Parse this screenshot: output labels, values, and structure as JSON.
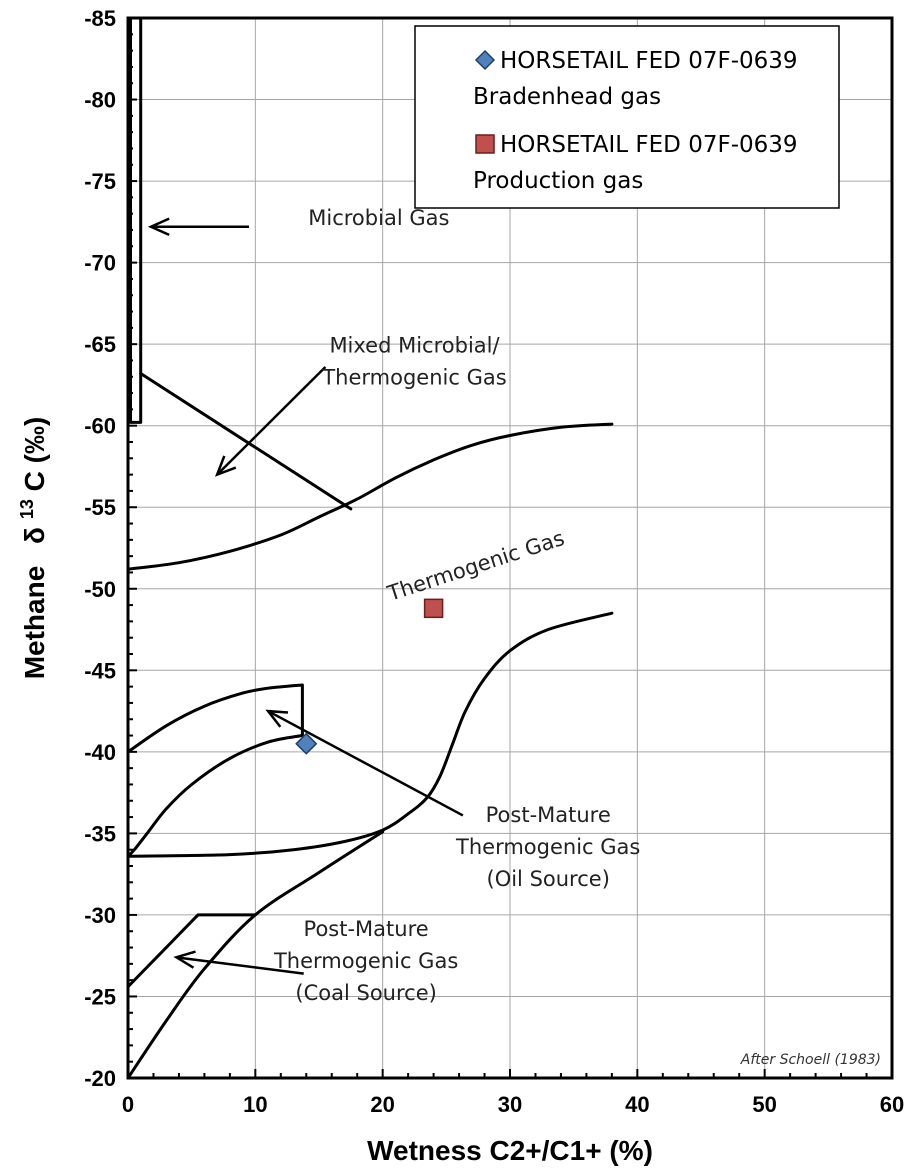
{
  "chart_data": {
    "type": "scatter",
    "title": "",
    "xlabel": "Wetness C2+/C1+ (%)",
    "ylabel_prefix": "Methane",
    "ylabel_delta": "δ",
    "ylabel_sup": "13",
    "ylabel_suffix": "C (‰)",
    "xlim": [
      0,
      60
    ],
    "ylim": [
      -85,
      -20
    ],
    "x_ticks": [
      0,
      10,
      20,
      30,
      40,
      50,
      60
    ],
    "y_ticks": [
      -85,
      -80,
      -75,
      -70,
      -65,
      -60,
      -55,
      -50,
      -45,
      -40,
      -35,
      -30,
      -25,
      -20
    ],
    "x_tick_labels": [
      "0",
      "10",
      "20",
      "30",
      "40",
      "50",
      "60"
    ],
    "y_tick_labels": [
      "-85",
      "-80",
      "-75",
      "-70",
      "-65",
      "-60",
      "-55",
      "-50",
      "-45",
      "-40",
      "-35",
      "-30",
      "-25",
      "-20"
    ],
    "grid": true,
    "legend_position": "top-right",
    "series": [
      {
        "name_line1": "HORSETAIL FED 07F-0639",
        "name_line2": "Bradenhead gas",
        "marker": "diamond",
        "color": "#4f81bd",
        "points": [
          [
            14.0,
            -40.5
          ]
        ]
      },
      {
        "name_line1": "HORSETAIL FED 07F-0639",
        "name_line2": "Production gas",
        "marker": "square",
        "color": "#c0504d",
        "points": [
          [
            24.0,
            -48.8
          ]
        ]
      }
    ],
    "boundaries": [
      {
        "id": "microbial-box",
        "points": [
          [
            0.2,
            -85
          ],
          [
            0.2,
            -60.2
          ],
          [
            1.0,
            -60.2
          ],
          [
            1.0,
            -85
          ]
        ]
      },
      {
        "id": "mixed-diagonal",
        "points": [
          [
            1.0,
            -63.2
          ],
          [
            17.5,
            -54.9
          ]
        ]
      },
      {
        "id": "thermogenic-upper",
        "points": [
          [
            0,
            -51.2
          ],
          [
            4,
            -51.6
          ],
          [
            8,
            -52.3
          ],
          [
            12,
            -53.3
          ],
          [
            15,
            -54.4
          ],
          [
            18,
            -55.5
          ],
          [
            21,
            -56.8
          ],
          [
            24,
            -57.9
          ],
          [
            27,
            -58.8
          ],
          [
            30,
            -59.4
          ],
          [
            34,
            -59.9
          ],
          [
            38,
            -60.1
          ]
        ]
      },
      {
        "id": "thermogenic-lower",
        "points": [
          [
            0,
            -33.6
          ],
          [
            8,
            -33.7
          ],
          [
            13,
            -34.0
          ],
          [
            17,
            -34.5
          ],
          [
            20,
            -35.2
          ],
          [
            22,
            -36.2
          ],
          [
            23.5,
            -37.2
          ],
          [
            24.5,
            -38.5
          ],
          [
            25.5,
            -40.5
          ],
          [
            26.5,
            -42.5
          ],
          [
            28,
            -44.5
          ],
          [
            30,
            -46.2
          ],
          [
            33,
            -47.5
          ],
          [
            38,
            -48.5
          ]
        ]
      },
      {
        "id": "oil-source-outer",
        "points": [
          [
            0,
            -40.0
          ],
          [
            3,
            -41.6
          ],
          [
            6,
            -42.8
          ],
          [
            9,
            -43.6
          ],
          [
            11,
            -43.9
          ],
          [
            13.7,
            -44.1
          ],
          [
            13.7,
            -41.0
          ]
        ]
      },
      {
        "id": "oil-source-inner",
        "points": [
          [
            13.7,
            -41.0
          ],
          [
            11,
            -40.6
          ],
          [
            8,
            -39.6
          ],
          [
            5,
            -38.0
          ],
          [
            3,
            -36.5
          ],
          [
            1.5,
            -35.0
          ],
          [
            0.5,
            -34.0
          ],
          [
            0,
            -33.6
          ]
        ]
      },
      {
        "id": "coal-source-outer",
        "points": [
          [
            0,
            -25.6
          ],
          [
            2,
            -27.2
          ],
          [
            4,
            -28.8
          ],
          [
            5.5,
            -30.0
          ],
          [
            10,
            -30.0
          ]
        ]
      },
      {
        "id": "coal-source-inner",
        "points": [
          [
            0,
            -20.0
          ],
          [
            3,
            -23.5
          ],
          [
            6,
            -26.7
          ],
          [
            10,
            -30.0
          ],
          [
            15,
            -32.6
          ],
          [
            20,
            -35.1
          ]
        ]
      }
    ],
    "arrows": [
      {
        "from": [
          9.5,
          -72.2
        ],
        "to": [
          1.8,
          -72.2
        ]
      },
      {
        "from": [
          15.5,
          -63.6
        ],
        "to": [
          7.0,
          -57.0
        ]
      },
      {
        "from": [
          26.3,
          -36.1
        ],
        "to": [
          11.0,
          -42.5
        ]
      },
      {
        "from": [
          13.8,
          -26.4
        ],
        "to": [
          3.8,
          -27.4
        ]
      }
    ],
    "annotations": [
      {
        "lines": [
          "Microbial Gas"
        ],
        "x": 19.7,
        "y": -72.3,
        "anchor": "middle"
      },
      {
        "lines": [
          "Mixed Microbial/",
          "Thermogenic Gas"
        ],
        "x": 22.5,
        "y": -64.5,
        "anchor": "middle"
      },
      {
        "lines": [
          "Thermogenic Gas"
        ],
        "x": 27.5,
        "y": -51.0,
        "anchor": "middle",
        "rotate": -18
      },
      {
        "lines": [
          "Post-Mature",
          "Thermogenic Gas",
          "(Oil Source)"
        ],
        "x": 33.0,
        "y": -35.7,
        "anchor": "middle"
      },
      {
        "lines": [
          "Post-Mature",
          "Thermogenic Gas",
          "(Coal Source)"
        ],
        "x": 18.7,
        "y": -28.7,
        "anchor": "middle"
      }
    ],
    "credit": "After Schoell (1983)"
  }
}
